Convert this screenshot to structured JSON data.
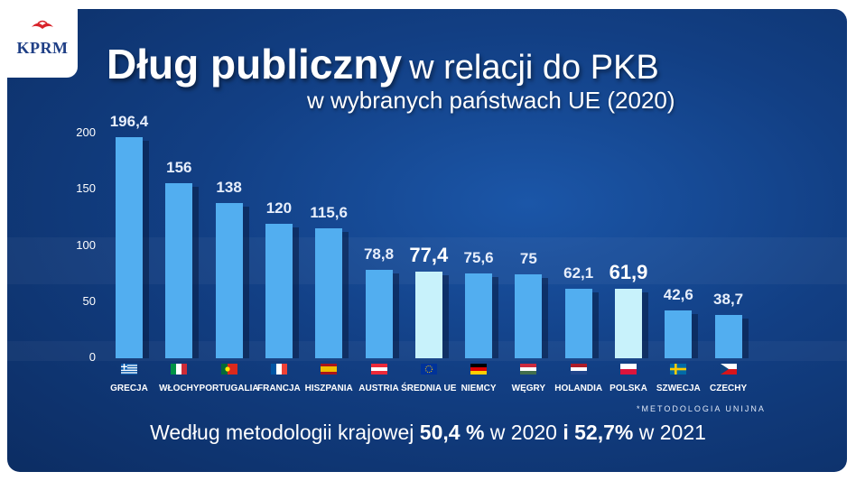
{
  "logo": {
    "text": "KPRM",
    "icon": "eagle-icon"
  },
  "title": {
    "bold": "Dług publiczny",
    "normal": "w relacji do PKB"
  },
  "subtitle": "w wybranych państwach UE (2020)",
  "note": "*METODOLOGIA UNIJNA",
  "footer": {
    "p1": "Według metodologii krajowej ",
    "b1": "50,4 %",
    "p2": " w 2020 ",
    "b2": "i 52,7%",
    "p3": " w 2021"
  },
  "colors": {
    "bar": "#52aef0",
    "bar_highlight": "#c8f2fb",
    "background": "#123f84"
  },
  "chart_data": {
    "type": "bar",
    "categories": [
      "GRECJA",
      "WŁOCHY",
      "PORTUGALIA",
      "FRANCJA",
      "HISZPANIA",
      "AUSTRIA",
      "ŚREDNIA UE",
      "NIEMCY",
      "WĘGRY",
      "HOLANDIA",
      "POLSKA",
      "SZWECJA",
      "CZECHY"
    ],
    "values": [
      196.4,
      156,
      138,
      120,
      115.6,
      78.8,
      77.4,
      75.6,
      75,
      62.1,
      61.9,
      42.6,
      38.7
    ],
    "labels": [
      "196,4",
      "156",
      "138",
      "120",
      "115,6",
      "78,8",
      "77,4",
      "75,6",
      "75",
      "62,1",
      "61,9",
      "42,6",
      "38,7"
    ],
    "highlight": [
      "ŚREDNIA UE",
      "POLSKA"
    ],
    "flags": [
      "greece-flag-icon",
      "italy-flag-icon",
      "portugal-flag-icon",
      "france-flag-icon",
      "spain-flag-icon",
      "austria-flag-icon",
      "eu-flag-icon",
      "germany-flag-icon",
      "hungary-flag-icon",
      "netherlands-flag-icon",
      "poland-flag-icon",
      "sweden-flag-icon",
      "czech-flag-icon"
    ],
    "yticks": [
      "0",
      "50",
      "100",
      "150",
      "200"
    ],
    "ylim": [
      0,
      200
    ]
  }
}
